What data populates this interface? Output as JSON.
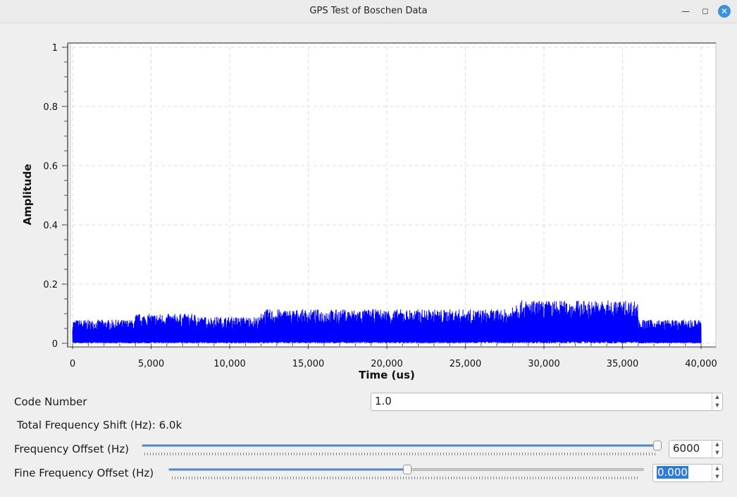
{
  "window": {
    "title": "GPS Test of Boschen Data",
    "minimize_icon": "minimize-icon",
    "maximize_icon": "maximize-icon",
    "close_icon": "close-icon",
    "accent": "#3d8fe0"
  },
  "chart_data": {
    "type": "line",
    "xlabel": "Time (us)",
    "ylabel": "Amplitude",
    "xlim": [
      0,
      40000
    ],
    "ylim": [
      0,
      1
    ],
    "x_ticks": [
      "0",
      "5,000",
      "10,000",
      "15,000",
      "20,000",
      "25,000",
      "30,000",
      "35,000",
      "40,000"
    ],
    "y_ticks": [
      "0",
      "0.2",
      "0.4",
      "0.6",
      "0.8",
      "1"
    ],
    "grid": true,
    "line_color": "#0000ff",
    "series": [
      {
        "segments": [
          {
            "x_start": 0,
            "x_end": 4000,
            "min": 0.0,
            "max": 0.08
          },
          {
            "x_start": 4000,
            "x_end": 8000,
            "min": 0.0,
            "max": 0.1
          },
          {
            "x_start": 8000,
            "x_end": 12000,
            "min": 0.0,
            "max": 0.09
          },
          {
            "x_start": 12000,
            "x_end": 28000,
            "min": 0.0,
            "max": 0.115
          },
          {
            "x_start": 28000,
            "x_end": 36000,
            "min": 0.0,
            "max": 0.145
          },
          {
            "x_start": 36000,
            "x_end": 40000,
            "min": 0.0,
            "max": 0.08
          }
        ]
      }
    ]
  },
  "controls": {
    "code_number": {
      "label": "Code Number",
      "value": "1.0"
    },
    "total_shift": {
      "label": "Total Frequency Shift (Hz):",
      "value": "6.0k"
    },
    "freq_offset": {
      "label": "Frequency Offset (Hz)",
      "value": "6000",
      "level": 1.0
    },
    "fine_offset": {
      "label": "Fine Frequency Offset (Hz)",
      "value": "0.000",
      "level": 0.5
    }
  }
}
